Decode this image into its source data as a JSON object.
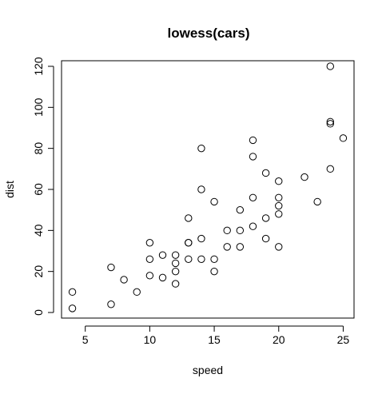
{
  "chart_data": {
    "type": "scatter",
    "title": "lowess(cars)",
    "xlabel": "speed",
    "ylabel": "dist",
    "xlim": [
      3.16,
      25.84
    ],
    "ylim": [
      -2.72,
      122.72
    ],
    "x_ticks": [
      5,
      10,
      15,
      20,
      25
    ],
    "y_ticks": [
      0,
      20,
      40,
      60,
      80,
      100,
      120
    ],
    "grid": false,
    "legend": "none",
    "point_color": "#000000",
    "marker": "open-circle",
    "points": [
      {
        "x": 4,
        "y": 2
      },
      {
        "x": 4,
        "y": 10
      },
      {
        "x": 7,
        "y": 4
      },
      {
        "x": 7,
        "y": 22
      },
      {
        "x": 8,
        "y": 16
      },
      {
        "x": 9,
        "y": 10
      },
      {
        "x": 10,
        "y": 18
      },
      {
        "x": 10,
        "y": 26
      },
      {
        "x": 10,
        "y": 34
      },
      {
        "x": 11,
        "y": 17
      },
      {
        "x": 11,
        "y": 28
      },
      {
        "x": 12,
        "y": 14
      },
      {
        "x": 12,
        "y": 20
      },
      {
        "x": 12,
        "y": 24
      },
      {
        "x": 12,
        "y": 28
      },
      {
        "x": 13,
        "y": 26
      },
      {
        "x": 13,
        "y": 34
      },
      {
        "x": 13,
        "y": 34
      },
      {
        "x": 13,
        "y": 46
      },
      {
        "x": 14,
        "y": 26
      },
      {
        "x": 14,
        "y": 36
      },
      {
        "x": 14,
        "y": 60
      },
      {
        "x": 14,
        "y": 80
      },
      {
        "x": 15,
        "y": 20
      },
      {
        "x": 15,
        "y": 26
      },
      {
        "x": 15,
        "y": 54
      },
      {
        "x": 16,
        "y": 32
      },
      {
        "x": 16,
        "y": 40
      },
      {
        "x": 17,
        "y": 32
      },
      {
        "x": 17,
        "y": 40
      },
      {
        "x": 17,
        "y": 50
      },
      {
        "x": 18,
        "y": 42
      },
      {
        "x": 18,
        "y": 56
      },
      {
        "x": 18,
        "y": 76
      },
      {
        "x": 18,
        "y": 84
      },
      {
        "x": 19,
        "y": 36
      },
      {
        "x": 19,
        "y": 46
      },
      {
        "x": 19,
        "y": 68
      },
      {
        "x": 20,
        "y": 32
      },
      {
        "x": 20,
        "y": 48
      },
      {
        "x": 20,
        "y": 52
      },
      {
        "x": 20,
        "y": 56
      },
      {
        "x": 20,
        "y": 64
      },
      {
        "x": 22,
        "y": 66
      },
      {
        "x": 23,
        "y": 54
      },
      {
        "x": 24,
        "y": 70
      },
      {
        "x": 24,
        "y": 92
      },
      {
        "x": 24,
        "y": 93
      },
      {
        "x": 24,
        "y": 120
      },
      {
        "x": 25,
        "y": 85
      }
    ]
  }
}
